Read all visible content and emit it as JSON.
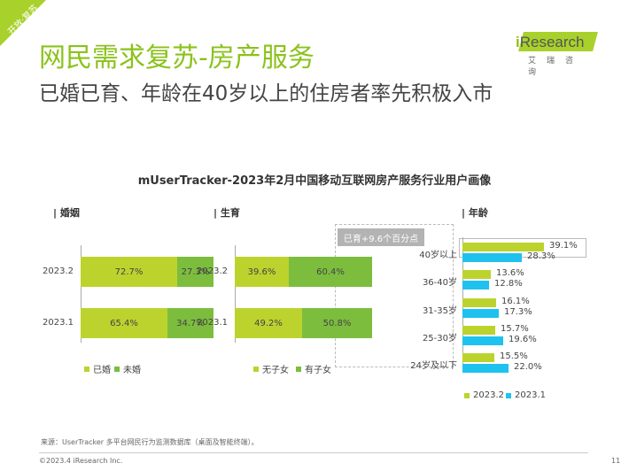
{
  "header": {
    "corner_tag": "开放·复苏",
    "title": "网民需求复苏-房产服务",
    "subtitle": "已婚已育、年龄在40岁以上的住房者率先积极入市",
    "logo_main": "Research",
    "logo_i": "i",
    "logo_sub": "艾瑞咨询"
  },
  "colors": {
    "light_green": "#bcd32e",
    "dark_green": "#7cbd3e",
    "cyan": "#1fc2ee",
    "title_green": "#8bc21c"
  },
  "chart_data": [
    {
      "type": "bar",
      "stacked": true,
      "orientation": "horizontal",
      "title": "| 婚姻",
      "categories": [
        "2023.2",
        "2023.1"
      ],
      "series": [
        {
          "name": "已婚",
          "values": [
            72.7,
            65.4
          ],
          "labels": [
            "72.7%",
            "65.4%"
          ]
        },
        {
          "name": "未婚",
          "values": [
            27.3,
            34.7
          ],
          "labels": [
            "27.3%",
            "34.7%"
          ]
        }
      ]
    },
    {
      "type": "bar",
      "stacked": true,
      "orientation": "horizontal",
      "title": "| 生育",
      "categories": [
        "2023.2",
        "2023.1"
      ],
      "series": [
        {
          "name": "无子女",
          "values": [
            39.6,
            49.2
          ],
          "labels": [
            "39.6%",
            "49.2%"
          ]
        },
        {
          "name": "有子女",
          "values": [
            60.4,
            50.8
          ],
          "labels": [
            "60.4%",
            "50.8%"
          ]
        }
      ],
      "annotation": "已育+9.6个百分点"
    },
    {
      "type": "bar",
      "orientation": "horizontal",
      "title": "| 年龄",
      "categories": [
        "40岁以上",
        "36-40岁",
        "31-35岁",
        "25-30岁",
        "24岁及以下"
      ],
      "series": [
        {
          "name": "2023.2",
          "values": [
            39.1,
            13.6,
            16.1,
            15.7,
            15.5
          ],
          "labels": [
            "39.1%",
            "13.6%",
            "16.1%",
            "15.7%",
            "15.5%"
          ]
        },
        {
          "name": "2023.1",
          "values": [
            28.3,
            12.8,
            17.3,
            19.6,
            22.0
          ],
          "labels": [
            "28.3%",
            "12.8%",
            "17.3%",
            "19.6%",
            "22.0%"
          ]
        }
      ]
    }
  ],
  "chart_main_title": "mUserTracker-2023年2月中国移动互联网房产服务行业用户画像",
  "footer": {
    "source": "来源：UserTracker 多平台网民行为监测数据库（桌面及智能终端）。",
    "copyright": "©2023.4 iResearch Inc.",
    "page": "11"
  }
}
